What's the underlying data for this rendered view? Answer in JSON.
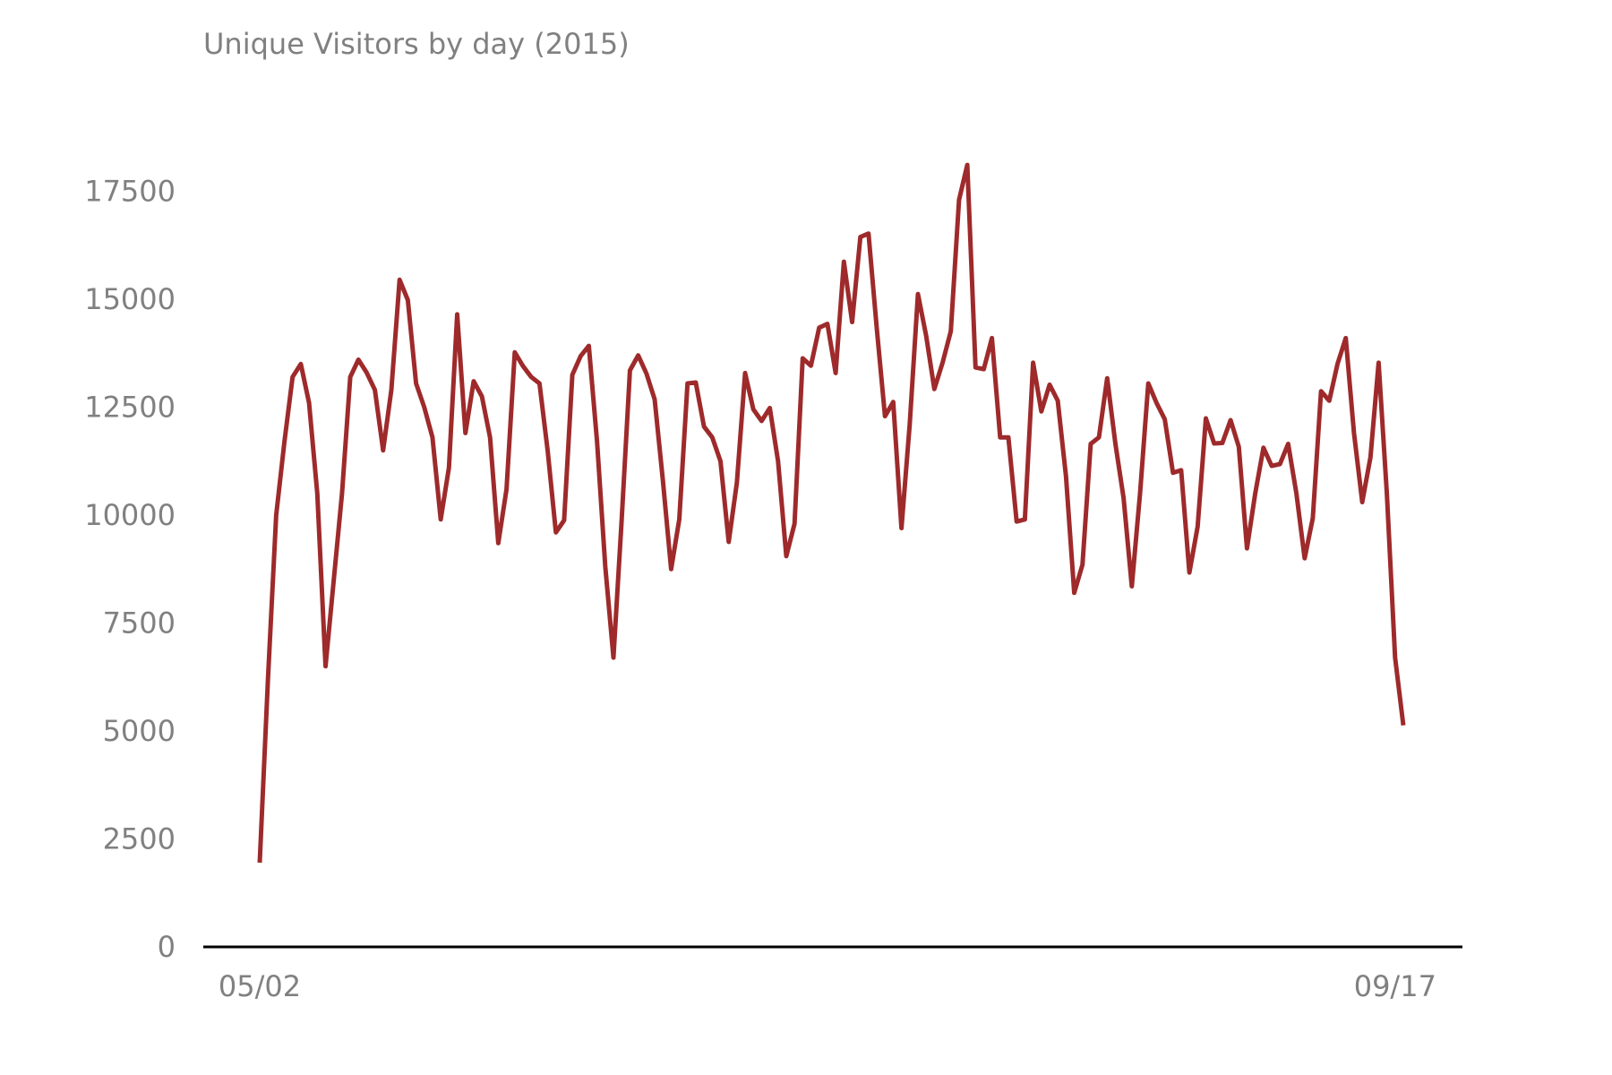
{
  "chart_data": {
    "type": "line",
    "title": "Unique Visitors by day (2015)",
    "xlabel": "",
    "ylabel": "",
    "ylim": [
      0,
      19000
    ],
    "yticks": [
      0,
      2500,
      5000,
      7500,
      10000,
      12500,
      15000,
      17500
    ],
    "ytick_labels": [
      "0",
      "2500",
      "5000",
      "7500",
      "10000",
      "12500",
      "15000",
      "17500"
    ],
    "x_tick_labels": [
      {
        "label": "05/02",
        "index": 0
      },
      {
        "label": "09/17",
        "index": 138
      }
    ],
    "grid": false,
    "legend": "none",
    "series": [
      {
        "color": "#9e2a2b",
        "values": [
          1950,
          6200,
          10000,
          11700,
          13200,
          13500,
          12600,
          10500,
          6500,
          8500,
          10500,
          13200,
          13600,
          13300,
          12900,
          11500,
          12900,
          15450,
          14980,
          13050,
          12500,
          11800,
          9900,
          11100,
          14650,
          11900,
          13100,
          12750,
          11800,
          9350,
          10600,
          13770,
          13450,
          13200,
          13050,
          11500,
          9600,
          9880,
          13250,
          13680,
          13920,
          11700,
          8800,
          6700,
          9900,
          13350,
          13700,
          13280,
          12680,
          10800,
          8750,
          9900,
          13050,
          13070,
          12050,
          11800,
          11250,
          9380,
          10750,
          13290,
          12450,
          12180,
          12480,
          11250,
          9050,
          9800,
          13630,
          13460,
          14340,
          14430,
          13290,
          15870,
          14470,
          16440,
          16520,
          14330,
          12290,
          12620,
          9700,
          12100,
          15120,
          14150,
          12920,
          13530,
          14260,
          17300,
          18110,
          13420,
          13380,
          14100,
          11800,
          11800,
          9850,
          9900,
          13530,
          12400,
          13020,
          12650,
          10900,
          8200,
          8850,
          11650,
          11800,
          13170,
          11650,
          10400,
          8350,
          10500,
          13050,
          12600,
          12220,
          10980,
          11040,
          8670,
          9730,
          12240,
          11660,
          11670,
          12200,
          11580,
          9230,
          10500,
          11560,
          11140,
          11180,
          11650,
          10500,
          9000,
          9930,
          12870,
          12650,
          13500,
          14100,
          11900,
          10300,
          11340,
          13530,
          10500,
          6700,
          5130
        ]
      }
    ]
  }
}
